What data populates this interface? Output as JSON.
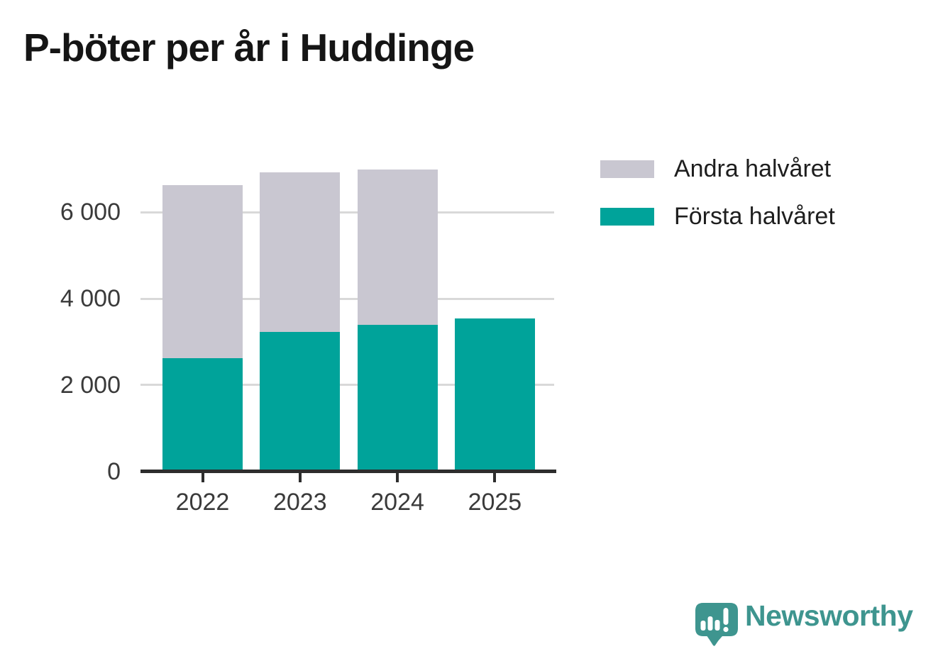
{
  "title": "P-böter per år i Huddinge",
  "chart_data": {
    "type": "bar",
    "stacked": true,
    "title": "P-böter per år i Huddinge",
    "categories": [
      "2022",
      "2023",
      "2024",
      "2025"
    ],
    "series": [
      {
        "name": "Första halvåret",
        "color": "#00a39a",
        "values": [
          2620,
          3220,
          3400,
          3550
        ]
      },
      {
        "name": "Andra halvåret",
        "color": "#c9c7d1",
        "values": [
          4020,
          3700,
          3600,
          null
        ]
      }
    ],
    "totals": [
      6640,
      6920,
      7000,
      3550
    ],
    "xlabel": "",
    "ylabel": "",
    "ylim": [
      0,
      7200
    ],
    "yticks": [
      {
        "value": 0,
        "label": "0"
      },
      {
        "value": 2000,
        "label": "2 000"
      },
      {
        "value": 4000,
        "label": "4 000"
      },
      {
        "value": 6000,
        "label": "6 000"
      }
    ],
    "grid": "horizontal, drawn behind bars",
    "legend_position": "top-right"
  },
  "legend": {
    "items": [
      {
        "label": "Andra halvåret",
        "color": "#c9c7d1"
      },
      {
        "label": "Första halvåret",
        "color": "#00a39a"
      }
    ]
  },
  "branding": {
    "name": "Newsworthy",
    "color": "#3e958f",
    "icon": "newsworthy-speech-bubble-bar-chart-icon"
  },
  "colors": {
    "background": "#ffffff",
    "axis": "#2d2d2d",
    "gridline": "#d9d9d9",
    "tick_label": "#3a3a3a",
    "title": "#151515"
  }
}
